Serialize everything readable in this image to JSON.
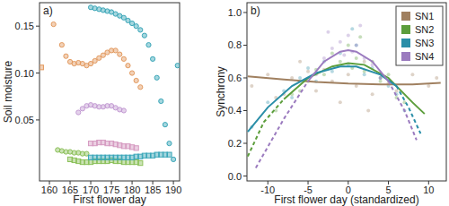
{
  "chart_data": [
    {
      "type": "scatter",
      "title": "a)",
      "x_label": "First flower day",
      "y_label": "Soil moisture",
      "xlim": [
        157.6,
        191.5
      ],
      "xticks": [
        160,
        165,
        170,
        175,
        180,
        185,
        190
      ],
      "ylim": [
        -0.015,
        0.175
      ],
      "yticks": [
        0.05,
        {
          "value": 0.1,
          "label": "0.10"
        },
        0.15
      ],
      "series": [
        {
          "color": "#e39a5f",
          "marker": "circle",
          "x": [
            161,
            163,
            164,
            165,
            166,
            167,
            168,
            169,
            170,
            171,
            172,
            173,
            174,
            175,
            176,
            177,
            178,
            179,
            180,
            181,
            182
          ],
          "values": [
            0.152,
            0.13,
            0.118,
            0.112,
            0.11,
            0.111,
            0.11,
            0.108,
            0.11,
            0.113,
            0.116,
            0.119,
            0.122,
            0.124,
            0.124,
            0.12,
            0.115,
            0.108,
            0.1,
            0.092,
            0.085
          ]
        },
        {
          "color": "#e39a5f",
          "marker": "square",
          "x": [
            158
          ],
          "values": [
            0.106
          ]
        },
        {
          "color": "#3aa6b8",
          "marker": "circle",
          "x": [
            170,
            171,
            172,
            173,
            174,
            175,
            176,
            177,
            178,
            179,
            180,
            181,
            182,
            183,
            184,
            185,
            186,
            187,
            188,
            189,
            190,
            191
          ],
          "values": [
            0.17,
            0.169,
            0.168,
            0.167,
            0.166,
            0.165,
            0.163,
            0.161,
            0.159,
            0.156,
            0.153,
            0.15,
            0.146,
            0.14,
            0.13,
            0.115,
            0.095,
            0.07,
            0.045,
            0.025,
            0.008,
            0.108
          ]
        },
        {
          "color": "#c39bd3",
          "marker": "circle",
          "x": [
            167,
            168,
            169,
            170,
            171,
            172,
            173,
            174,
            175,
            176,
            177,
            178
          ],
          "values": [
            0.058,
            0.062,
            0.065,
            0.066,
            0.065,
            0.064,
            0.064,
            0.065,
            0.065,
            0.063,
            0.061,
            0.06
          ]
        },
        {
          "color": "#d59ac0",
          "marker": "square",
          "x": [
            170,
            171,
            172,
            173,
            174,
            175,
            176,
            177,
            178,
            179,
            180,
            181
          ],
          "values": [
            0.025,
            0.025,
            0.026,
            0.026,
            0.025,
            0.025,
            0.024,
            0.023,
            0.022,
            0.022,
            0.021,
            0.02
          ]
        },
        {
          "color": "#8cc05a",
          "marker": "circle",
          "x": [
            162,
            163,
            164,
            165,
            166,
            167,
            168,
            169
          ],
          "values": [
            0.018,
            0.017,
            0.016,
            0.016,
            0.015,
            0.015,
            0.014,
            0.014
          ]
        },
        {
          "color": "#8cc05a",
          "marker": "square",
          "x": [
            165,
            166,
            167,
            168,
            169,
            170,
            171,
            172,
            173,
            174,
            175,
            176,
            177,
            178,
            179,
            180,
            181,
            182
          ],
          "values": [
            0.008,
            0.007,
            0.006,
            0.005,
            0.005,
            0.005,
            0.006,
            0.006,
            0.006,
            0.006,
            0.007,
            0.006,
            0.006,
            0.005,
            0.005,
            0.005,
            0.005,
            0.004
          ]
        },
        {
          "color": "#3aa6b8",
          "marker": "square",
          "x": [
            170,
            171,
            172,
            173,
            174,
            175,
            176,
            177,
            178,
            179,
            180,
            181,
            182,
            183,
            184,
            185,
            186,
            187,
            188,
            189
          ],
          "values": [
            0.01,
            0.01,
            0.01,
            0.01,
            0.01,
            0.01,
            0.01,
            0.01,
            0.01,
            0.01,
            0.01,
            0.011,
            0.011,
            0.012,
            0.012,
            0.012,
            0.013,
            0.013,
            0.013,
            0.013
          ]
        }
      ]
    },
    {
      "type": "scatter",
      "title": "b)",
      "x_label": "First flower day (standardized)",
      "y_label": "Synchrony",
      "xlim": [
        -12.6,
        12.2
      ],
      "xticks": [
        -10,
        -5,
        0,
        5,
        10
      ],
      "ylim": [
        -0.03,
        1.06
      ],
      "yticks": [
        {
          "value": 0,
          "label": "0.0"
        },
        0.2,
        0.4,
        0.6,
        0.8,
        {
          "value": 1,
          "label": "1.0"
        }
      ],
      "legend": "topright",
      "series": [
        {
          "type": "scatter",
          "color": "#a08060",
          "marker": "circle",
          "x": [
            -12,
            -10,
            -9,
            -7,
            -6,
            -4,
            -3,
            -2,
            -1,
            0,
            1,
            2,
            3,
            4,
            5,
            6,
            8,
            10,
            11,
            -5,
            -8,
            2.5
          ],
          "values": [
            0.55,
            0.62,
            0.48,
            0.6,
            0.7,
            0.52,
            0.65,
            0.58,
            0.45,
            0.62,
            0.55,
            0.7,
            0.5,
            0.6,
            0.57,
            0.52,
            0.62,
            0.55,
            0.6,
            0.64,
            0.5,
            0.4
          ]
        },
        {
          "type": "scatter",
          "color": "#5c9e3c",
          "marker": "circle",
          "x": [
            -9,
            -7,
            -5,
            -4,
            -3,
            -2,
            -1,
            0,
            0.5,
            1,
            2,
            3,
            4,
            5,
            6,
            7,
            -6,
            1.5
          ],
          "values": [
            0.4,
            0.5,
            0.58,
            0.65,
            0.62,
            0.75,
            0.7,
            0.8,
            0.66,
            0.72,
            0.64,
            0.7,
            0.58,
            0.62,
            0.48,
            0.45,
            0.52,
            0.85
          ]
        },
        {
          "type": "scatter",
          "color": "#2a8ea8",
          "marker": "circle",
          "x": [
            -12,
            -10,
            -8,
            -6,
            -5,
            -4,
            -3,
            -2,
            -1,
            0,
            1,
            2,
            3,
            4,
            5,
            6,
            7,
            -7,
            0.5
          ],
          "values": [
            0.3,
            0.45,
            0.52,
            0.6,
            0.66,
            0.58,
            0.7,
            0.64,
            0.75,
            0.68,
            0.8,
            0.62,
            0.66,
            0.6,
            0.55,
            0.5,
            0.4,
            0.48,
            0.9
          ]
        },
        {
          "type": "scatter",
          "color": "#9b7bbf",
          "marker": "circle",
          "x": [
            -4,
            -3,
            -2,
            -1,
            -0.5,
            0,
            0.5,
            1,
            2,
            3,
            4,
            -2.5,
            1.5
          ],
          "values": [
            0.62,
            0.72,
            0.78,
            0.82,
            0.74,
            0.86,
            0.76,
            0.8,
            0.72,
            0.68,
            0.6,
            0.88,
            0.92
          ]
        },
        {
          "name": "SN1",
          "type": "line",
          "line_style": "solid",
          "color": "#a08060",
          "x": [
            -12.5,
            -8,
            -4,
            0,
            4,
            8,
            11.5
          ],
          "values": [
            0.61,
            0.59,
            0.575,
            0.565,
            0.56,
            0.56,
            0.57
          ]
        },
        {
          "name": "SN2",
          "type": "line",
          "line_style": "solid",
          "color": "#5c9e3c",
          "x": [
            -8,
            -5,
            -2,
            0,
            2,
            5,
            8,
            9.5
          ],
          "values": [
            0.47,
            0.6,
            0.67,
            0.69,
            0.68,
            0.6,
            0.45,
            0.38
          ]
        },
        {
          "name": "SN3",
          "type": "line",
          "line_style": "solid",
          "color": "#2a8ea8",
          "x": [
            -12.5,
            -10,
            -7,
            -4,
            -1,
            1,
            4,
            6
          ],
          "values": [
            0.27,
            0.42,
            0.55,
            0.63,
            0.67,
            0.67,
            0.62,
            0.55
          ]
        },
        {
          "name": "SN4",
          "type": "line",
          "line_style": "solid",
          "color": "#9b7bbf",
          "x": [
            -5,
            -3,
            -1,
            0,
            1,
            3,
            5
          ],
          "values": [
            0.58,
            0.7,
            0.76,
            0.77,
            0.76,
            0.7,
            0.58
          ]
        },
        {
          "type": "line",
          "line_style": "dashed",
          "color": "#5c9e3c",
          "x": [
            -12.5,
            -10.5,
            -8
          ],
          "values": [
            0.12,
            0.33,
            0.47
          ]
        },
        {
          "type": "line",
          "line_style": "dashed",
          "color": "#2a8ea8",
          "x": [
            6,
            7.5,
            9
          ],
          "values": [
            0.55,
            0.42,
            0.26
          ]
        },
        {
          "type": "line",
          "line_style": "dashed",
          "color": "#9b7bbf",
          "x": [
            -11.5,
            -8,
            -5
          ],
          "values": [
            0.05,
            0.35,
            0.58
          ]
        },
        {
          "type": "line",
          "line_style": "dashed",
          "color": "#9b7bbf",
          "x": [
            5,
            7,
            8.5
          ],
          "values": [
            0.58,
            0.4,
            0.22
          ]
        }
      ]
    }
  ]
}
